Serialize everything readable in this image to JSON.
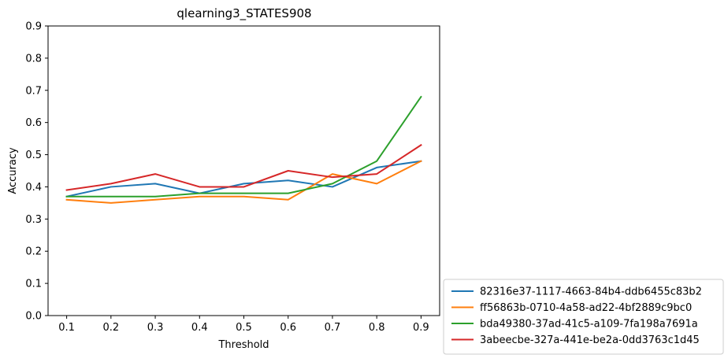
{
  "chart_data": {
    "type": "line",
    "title": "qlearning3_STATES908",
    "xlabel": "Threshold",
    "ylabel": "Accuracy",
    "x": [
      0.1,
      0.2,
      0.3,
      0.4,
      0.5,
      0.6,
      0.7,
      0.8,
      0.9
    ],
    "x_ticks": [
      "0.1",
      "0.2",
      "0.3",
      "0.4",
      "0.5",
      "0.6",
      "0.7",
      "0.8",
      "0.9"
    ],
    "y_ticks": [
      "0.0",
      "0.1",
      "0.2",
      "0.3",
      "0.4",
      "0.5",
      "0.6",
      "0.7",
      "0.8",
      "0.9"
    ],
    "xlim": [
      0.058,
      0.942
    ],
    "ylim": [
      0.0,
      0.9
    ],
    "grid": false,
    "legend_position": "outside-bottom-right",
    "series": [
      {
        "name": "82316e37-1117-4663-84b4-ddb6455c83b2",
        "color": "#1f77b4",
        "values": [
          0.37,
          0.4,
          0.41,
          0.38,
          0.41,
          0.42,
          0.4,
          0.46,
          0.48
        ]
      },
      {
        "name": "ff56863b-0710-4a58-ad22-4bf2889c9bc0",
        "color": "#ff7f0e",
        "values": [
          0.36,
          0.35,
          0.36,
          0.37,
          0.37,
          0.36,
          0.44,
          0.41,
          0.48
        ]
      },
      {
        "name": "bda49380-37ad-41c5-a109-7fa198a7691a",
        "color": "#2ca02c",
        "values": [
          0.37,
          0.37,
          0.37,
          0.38,
          0.38,
          0.38,
          0.41,
          0.48,
          0.68
        ]
      },
      {
        "name": "3abeecbe-327a-441e-be2a-0dd3763c1d45",
        "color": "#d62728",
        "values": [
          0.39,
          0.41,
          0.44,
          0.4,
          0.4,
          0.45,
          0.43,
          0.44,
          0.53
        ]
      }
    ]
  }
}
